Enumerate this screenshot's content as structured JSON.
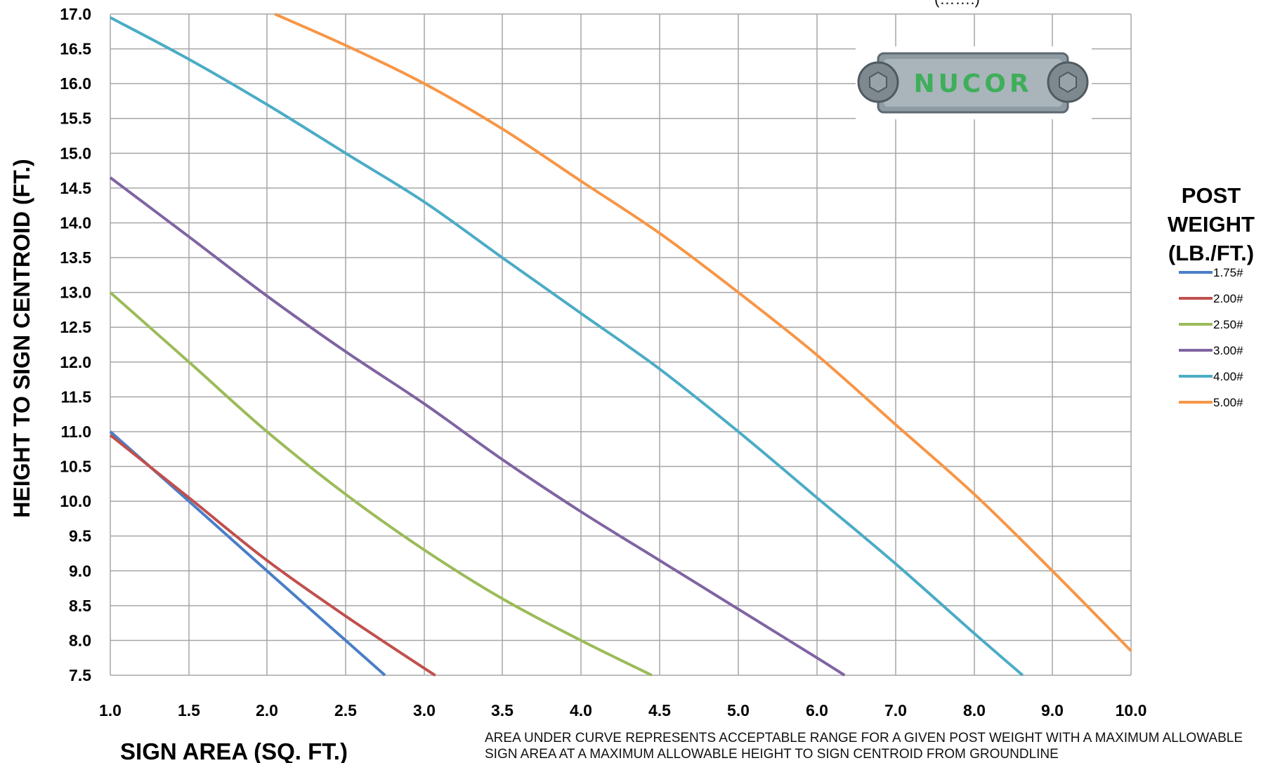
{
  "logo_text": "NUCOR",
  "top_fragment": "(…….)",
  "footnote": "AREA UNDER CURVE REPRESENTS ACCEPTABLE RANGE FOR  A GIVEN POST WEIGHT  WITH  A MAXIMUM ALLOWABLE SIGN AREA AT A MAXIMUM ALLOWABLE HEIGHT TO SIGN  CENTROID FROM GROUNDLINE",
  "chart_data": {
    "type": "line",
    "xlabel": "SIGN AREA (SQ. FT.)",
    "ylabel": "HEIGHT TO SIGN CENTROID (FT.)",
    "xlim": [
      1.0,
      10.0
    ],
    "ylim": [
      7.5,
      17.0
    ],
    "x_ticks": [
      "1.0",
      "1.5",
      "2.0",
      "2.5",
      "3.0",
      "3.5",
      "4.0",
      "4.5",
      "5.0",
      "6.0",
      "7.0",
      "8.0",
      "9.0",
      "10.0"
    ],
    "y_ticks": [
      "7.5",
      "8.0",
      "8.5",
      "9.0",
      "9.5",
      "10.0",
      "10.5",
      "11.0",
      "11.5",
      "12.0",
      "12.5",
      "13.0",
      "13.5",
      "14.0",
      "14.5",
      "15.0",
      "15.5",
      "16.0",
      "16.5",
      "17.0"
    ],
    "grid": true,
    "legend_title": [
      "POST",
      "WEIGHT",
      "(LB./FT.)"
    ],
    "legend_position": "right",
    "series": [
      {
        "name": "1.75#",
        "color": "#4a7ec7",
        "x": [
          1.0,
          1.5,
          2.0,
          2.5,
          2.75
        ],
        "y": [
          11.0,
          10.0,
          9.0,
          8.0,
          7.5
        ]
      },
      {
        "name": "2.00#",
        "color": "#c0504d",
        "x": [
          1.0,
          1.5,
          2.0,
          2.5,
          3.0,
          3.07
        ],
        "y": [
          10.95,
          10.05,
          9.15,
          8.35,
          7.6,
          7.5
        ]
      },
      {
        "name": "2.50#",
        "color": "#9bbb59",
        "x": [
          1.0,
          1.5,
          2.0,
          2.5,
          3.0,
          3.5,
          4.0,
          4.45
        ],
        "y": [
          13.0,
          12.0,
          11.0,
          10.1,
          9.3,
          8.6,
          8.0,
          7.5
        ]
      },
      {
        "name": "3.00#",
        "color": "#8064a2",
        "x": [
          1.0,
          1.5,
          2.0,
          2.5,
          3.0,
          3.5,
          4.0,
          4.5,
          5.0,
          6.0,
          6.35
        ],
        "y": [
          14.65,
          13.8,
          12.95,
          12.15,
          11.4,
          10.6,
          9.85,
          9.15,
          8.45,
          7.75,
          7.5
        ]
      },
      {
        "name": "4.00#",
        "color": "#4bacc6",
        "x": [
          1.0,
          1.5,
          2.0,
          2.5,
          3.0,
          3.5,
          4.0,
          4.5,
          5.0,
          6.0,
          7.0,
          8.0,
          8.62
        ],
        "y": [
          16.95,
          16.35,
          15.7,
          15.0,
          14.3,
          13.5,
          12.7,
          11.9,
          11.0,
          10.05,
          9.1,
          8.1,
          7.5
        ]
      },
      {
        "name": "5.00#",
        "color": "#f79646",
        "x": [
          2.05,
          2.5,
          3.0,
          3.5,
          4.0,
          4.5,
          5.0,
          6.0,
          7.0,
          8.0,
          9.0,
          10.0
        ],
        "y": [
          17.0,
          16.55,
          16.0,
          15.35,
          14.6,
          13.85,
          13.0,
          12.1,
          11.1,
          10.1,
          9.0,
          7.85
        ]
      }
    ]
  }
}
